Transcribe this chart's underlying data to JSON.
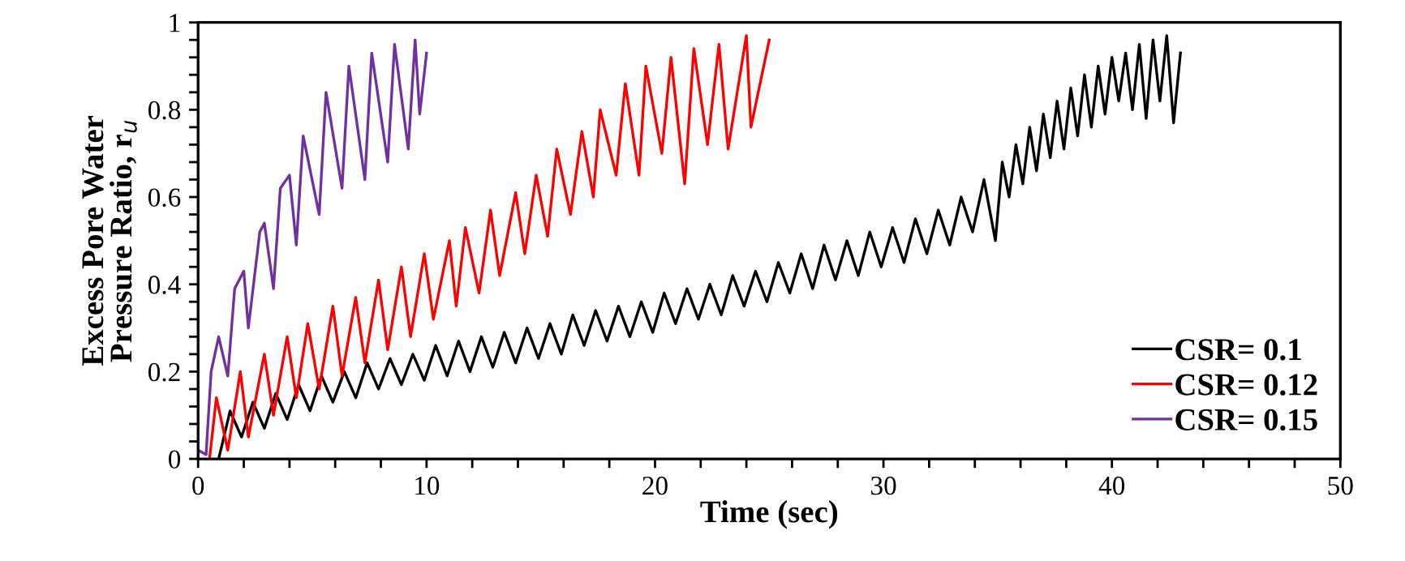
{
  "chart_data": {
    "type": "line",
    "xlabel": "Time (sec)",
    "ylabel": "Excess Pore Water\nPressure Ratio, r$_{u}$",
    "xlim": [
      0,
      50
    ],
    "ylim": [
      0,
      1
    ],
    "xticks": [
      0,
      {
        "value": 2,
        "label": null
      },
      {
        "value": 4,
        "label": null
      },
      {
        "value": 6,
        "label": null
      },
      {
        "value": 8,
        "label": null
      },
      10,
      {
        "value": 12,
        "label": null
      },
      {
        "value": 14,
        "label": null
      },
      {
        "value": 16,
        "label": null
      },
      {
        "value": 18,
        "label": null
      },
      20,
      {
        "value": 22,
        "label": null
      },
      {
        "value": 24,
        "label": null
      },
      {
        "value": 26,
        "label": null
      },
      {
        "value": 28,
        "label": null
      },
      30,
      {
        "value": 32,
        "label": null
      },
      {
        "value": 34,
        "label": null
      },
      {
        "value": 36,
        "label": null
      },
      {
        "value": 38,
        "label": null
      },
      40,
      {
        "value": 42,
        "label": null
      },
      {
        "value": 44,
        "label": null
      },
      {
        "value": 46,
        "label": null
      },
      {
        "value": 48,
        "label": null
      },
      50
    ],
    "yticks": [
      0,
      {
        "value": 0.04,
        "label": null
      },
      {
        "value": 0.08,
        "label": null
      },
      {
        "value": 0.12,
        "label": null
      },
      {
        "value": 0.16,
        "label": null
      },
      0.2,
      {
        "value": 0.24,
        "label": null
      },
      {
        "value": 0.28,
        "label": null
      },
      {
        "value": 0.32,
        "label": null
      },
      {
        "value": 0.36,
        "label": null
      },
      0.4,
      {
        "value": 0.44,
        "label": null
      },
      {
        "value": 0.48,
        "label": null
      },
      {
        "value": 0.52,
        "label": null
      },
      {
        "value": 0.56,
        "label": null
      },
      0.6,
      {
        "value": 0.64,
        "label": null
      },
      {
        "value": 0.68,
        "label": null
      },
      {
        "value": 0.72,
        "label": null
      },
      {
        "value": 0.76,
        "label": null
      },
      0.8,
      {
        "value": 0.84,
        "label": null
      },
      {
        "value": 0.88,
        "label": null
      },
      {
        "value": 0.92,
        "label": null
      },
      {
        "value": 0.96,
        "label": null
      },
      1
    ],
    "grid": false,
    "legend": "bottom right",
    "marker": "none",
    "line_style": "solid",
    "series": [
      {
        "name": "CSR= 0.1",
        "color": "#000000",
        "x": [
          0.9,
          1.4,
          1.9,
          2.4,
          2.9,
          3.4,
          3.9,
          4.4,
          4.9,
          5.4,
          5.9,
          6.4,
          6.9,
          7.4,
          7.9,
          8.4,
          8.9,
          9.4,
          9.9,
          10.4,
          10.9,
          11.4,
          11.9,
          12.4,
          12.9,
          13.4,
          13.9,
          14.4,
          14.9,
          15.4,
          15.9,
          16.4,
          16.9,
          17.4,
          17.9,
          18.4,
          18.9,
          19.4,
          19.9,
          20.4,
          20.9,
          21.4,
          21.9,
          22.4,
          22.9,
          23.4,
          23.9,
          24.4,
          24.9,
          25.4,
          25.9,
          26.4,
          26.9,
          27.4,
          27.9,
          28.4,
          28.9,
          29.4,
          29.9,
          30.4,
          30.9,
          31.4,
          31.9,
          32.4,
          32.9,
          33.4,
          33.9,
          34.4,
          34.9,
          35.2,
          35.5,
          35.8,
          36.1,
          36.4,
          36.7,
          37.0,
          37.3,
          37.6,
          37.9,
          38.2,
          38.5,
          38.8,
          39.1,
          39.4,
          39.7,
          40.0,
          40.3,
          40.6,
          40.9,
          41.2,
          41.5,
          41.8,
          42.1,
          42.4,
          42.7,
          43.0
        ],
        "values": [
          0.0,
          0.11,
          0.05,
          0.13,
          0.07,
          0.15,
          0.09,
          0.17,
          0.11,
          0.19,
          0.13,
          0.2,
          0.14,
          0.22,
          0.16,
          0.23,
          0.17,
          0.24,
          0.18,
          0.26,
          0.19,
          0.27,
          0.2,
          0.28,
          0.21,
          0.29,
          0.22,
          0.3,
          0.23,
          0.31,
          0.24,
          0.33,
          0.26,
          0.34,
          0.27,
          0.35,
          0.28,
          0.36,
          0.29,
          0.38,
          0.31,
          0.39,
          0.32,
          0.4,
          0.33,
          0.42,
          0.35,
          0.43,
          0.36,
          0.45,
          0.38,
          0.47,
          0.39,
          0.49,
          0.41,
          0.5,
          0.42,
          0.52,
          0.44,
          0.53,
          0.45,
          0.55,
          0.47,
          0.57,
          0.49,
          0.6,
          0.52,
          0.64,
          0.5,
          0.68,
          0.6,
          0.72,
          0.63,
          0.76,
          0.66,
          0.79,
          0.69,
          0.82,
          0.71,
          0.85,
          0.74,
          0.88,
          0.76,
          0.9,
          0.79,
          0.92,
          0.82,
          0.93,
          0.8,
          0.95,
          0.78,
          0.96,
          0.82,
          0.97,
          0.77,
          0.93
        ]
      },
      {
        "name": "CSR= 0.12",
        "color": "#ff0000",
        "x": [
          0.5,
          0.8,
          1.3,
          1.85,
          2.2,
          2.9,
          3.3,
          3.9,
          4.3,
          4.8,
          5.3,
          5.9,
          6.3,
          6.9,
          7.3,
          7.9,
          8.3,
          8.9,
          9.3,
          9.9,
          10.3,
          11.0,
          11.3,
          11.7,
          12.3,
          12.8,
          13.2,
          13.9,
          14.3,
          14.8,
          15.3,
          15.7,
          16.3,
          16.8,
          17.3,
          17.6,
          18.3,
          18.7,
          19.3,
          19.6,
          20.3,
          20.7,
          21.3,
          21.7,
          22.3,
          22.8,
          23.2,
          24.0,
          24.2,
          25.0
        ],
        "values": [
          0.0,
          0.14,
          0.02,
          0.2,
          0.05,
          0.24,
          0.1,
          0.28,
          0.14,
          0.31,
          0.16,
          0.35,
          0.19,
          0.37,
          0.22,
          0.41,
          0.25,
          0.44,
          0.28,
          0.47,
          0.32,
          0.5,
          0.35,
          0.53,
          0.38,
          0.57,
          0.42,
          0.61,
          0.47,
          0.65,
          0.51,
          0.71,
          0.56,
          0.75,
          0.6,
          0.8,
          0.65,
          0.86,
          0.65,
          0.9,
          0.7,
          0.92,
          0.63,
          0.94,
          0.72,
          0.95,
          0.71,
          0.97,
          0.76,
          0.96
        ]
      },
      {
        "name": "CSR= 0.15",
        "color": "#7030a0",
        "x": [
          0.0,
          0.35,
          0.57,
          0.9,
          1.3,
          1.6,
          2.0,
          2.2,
          2.7,
          2.9,
          3.3,
          3.6,
          4.0,
          4.3,
          4.6,
          5.3,
          5.6,
          6.3,
          6.6,
          7.3,
          7.6,
          8.3,
          8.6,
          9.2,
          9.5,
          9.7,
          10.0
        ],
        "values": [
          0.02,
          0.01,
          0.2,
          0.28,
          0.19,
          0.39,
          0.43,
          0.3,
          0.52,
          0.54,
          0.39,
          0.62,
          0.65,
          0.49,
          0.74,
          0.56,
          0.84,
          0.62,
          0.9,
          0.64,
          0.93,
          0.68,
          0.95,
          0.71,
          0.96,
          0.79,
          0.93
        ]
      }
    ]
  }
}
